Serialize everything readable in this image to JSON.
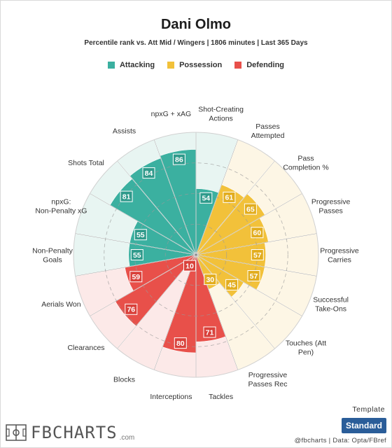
{
  "header": {
    "title": "Dani Olmo",
    "subtitle": "Percentile rank vs. Att Mid / Wingers | 1806 minutes | Last 365 Days"
  },
  "legend": [
    {
      "label": "Attacking",
      "color": "#3bb0a0"
    },
    {
      "label": "Possession",
      "color": "#f2c13a"
    },
    {
      "label": "Defending",
      "color": "#e8504a"
    }
  ],
  "chart_data": {
    "type": "radar-bar",
    "range": [
      0,
      100
    ],
    "categories": [
      {
        "label": "Shot-Creating Actions",
        "value": 54,
        "group": "Attacking"
      },
      {
        "label": "Passes Attempted",
        "value": 61,
        "group": "Possession"
      },
      {
        "label": "Pass Completion %",
        "value": 65,
        "group": "Possession"
      },
      {
        "label": "Progressive Passes",
        "value": 60,
        "group": "Possession"
      },
      {
        "label": "Progressive Carries",
        "value": 57,
        "group": "Possession"
      },
      {
        "label": "Successful Take-Ons",
        "value": 57,
        "group": "Possession"
      },
      {
        "label": "Touches (Att Pen)",
        "value": 45,
        "group": "Possession"
      },
      {
        "label": "Progressive Passes Rec",
        "value": 30,
        "group": "Possession"
      },
      {
        "label": "Tackles",
        "value": 71,
        "group": "Defending"
      },
      {
        "label": "Interceptions",
        "value": 80,
        "group": "Defending"
      },
      {
        "label": "Blocks",
        "value": 10,
        "group": "Defending"
      },
      {
        "label": "Clearances",
        "value": 76,
        "group": "Defending"
      },
      {
        "label": "Aerials Won",
        "value": 59,
        "group": "Defending"
      },
      {
        "label": "Non-Penalty Goals",
        "value": 55,
        "group": "Attacking"
      },
      {
        "label": "npxG: Non-Penalty xG",
        "value": 55,
        "group": "Attacking"
      },
      {
        "label": "Shots Total",
        "value": 81,
        "group": "Attacking"
      },
      {
        "label": "Assists",
        "value": 84,
        "group": "Attacking"
      },
      {
        "label": "npxG + xAG",
        "value": 86,
        "group": "Attacking"
      }
    ],
    "group_colors": {
      "Attacking": {
        "bar": "#3bb0a0",
        "bg": "#e8f5f2",
        "label": "#2f9a8b"
      },
      "Possession": {
        "bar": "#f2c13a",
        "bg": "#fdf6e5",
        "label": "#e2ad1f"
      },
      "Defending": {
        "bar": "#e8504a",
        "bg": "#fce9e8",
        "label": "#d9413b"
      }
    }
  },
  "footer": {
    "logo_text": "FBCHARTS",
    "logo_suffix": ".com",
    "template_label": "Template",
    "template_value": "Standard",
    "credit": "@fbcharts | Data: Opta/FBref"
  }
}
